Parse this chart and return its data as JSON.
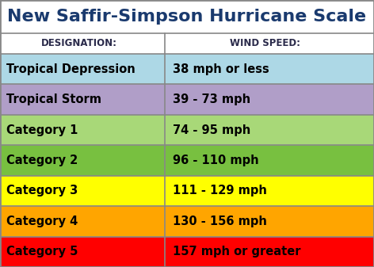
{
  "title": "New Saffir-Simpson Hurricane Scale",
  "title_color": "#1a3a6e",
  "header_designation": "DESIGNATION:",
  "header_wind": "WIND SPEED:",
  "rows": [
    {
      "designation": "Tropical Depression",
      "wind_speed": "38 mph or less",
      "color": "#add8e6"
    },
    {
      "designation": "Tropical Storm",
      "wind_speed": "39 - 73 mph",
      "color": "#b09ec8"
    },
    {
      "designation": "Category 1",
      "wind_speed": "74 - 95 mph",
      "color": "#a8d878"
    },
    {
      "designation": "Category 2",
      "wind_speed": "96 - 110 mph",
      "color": "#78c040"
    },
    {
      "designation": "Category 3",
      "wind_speed": "111 - 129 mph",
      "color": "#ffff00"
    },
    {
      "designation": "Category 4",
      "wind_speed": "130 - 156 mph",
      "color": "#ffa500"
    },
    {
      "designation": "Category 5",
      "wind_speed": "157 mph or greater",
      "color": "#ff0000"
    }
  ],
  "border_color": "#888888",
  "header_bg": "#ffffff",
  "title_bg": "#ffffff",
  "title_fontsize": 16,
  "header_fontsize": 8.5,
  "row_fontsize": 10.5,
  "col_split": 0.44
}
